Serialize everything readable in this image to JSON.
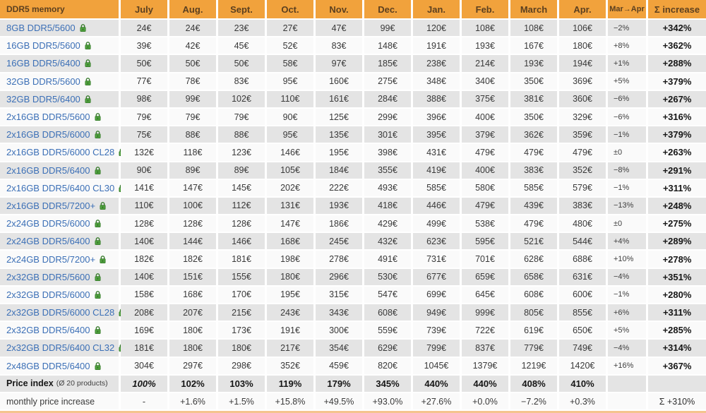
{
  "table": {
    "header": {
      "product_col": "DDR5 memory",
      "months": [
        "July",
        "Aug.",
        "Sept.",
        "Oct.",
        "Nov.",
        "Dec.",
        "Jan.",
        "Feb.",
        "March",
        "Apr."
      ],
      "change_col": "Mar→Apr",
      "total_col": "Σ increase"
    },
    "rows": [
      {
        "product": "8GB DDR5/5600",
        "prices": [
          "24€",
          "24€",
          "23€",
          "27€",
          "47€",
          "99€",
          "120€",
          "108€",
          "108€",
          "106€"
        ],
        "change": "−2%",
        "total": "+342%"
      },
      {
        "product": "16GB DDR5/5600",
        "prices": [
          "39€",
          "42€",
          "45€",
          "52€",
          "83€",
          "148€",
          "191€",
          "193€",
          "167€",
          "180€"
        ],
        "change": "+8%",
        "total": "+362%"
      },
      {
        "product": "16GB DDR5/6400",
        "prices": [
          "50€",
          "50€",
          "50€",
          "58€",
          "97€",
          "185€",
          "238€",
          "214€",
          "193€",
          "194€"
        ],
        "change": "+1%",
        "total": "+288%"
      },
      {
        "product": "32GB DDR5/5600",
        "prices": [
          "77€",
          "78€",
          "83€",
          "95€",
          "160€",
          "275€",
          "348€",
          "340€",
          "350€",
          "369€"
        ],
        "change": "+5%",
        "total": "+379%"
      },
      {
        "product": "32GB DDR5/6400",
        "prices": [
          "98€",
          "99€",
          "102€",
          "110€",
          "161€",
          "284€",
          "388€",
          "375€",
          "381€",
          "360€"
        ],
        "change": "−6%",
        "total": "+267%"
      },
      {
        "product": "2x16GB DDR5/5600",
        "prices": [
          "79€",
          "79€",
          "79€",
          "90€",
          "125€",
          "299€",
          "396€",
          "400€",
          "350€",
          "329€"
        ],
        "change": "−6%",
        "total": "+316%"
      },
      {
        "product": "2x16GB DDR5/6000",
        "prices": [
          "75€",
          "88€",
          "88€",
          "95€",
          "135€",
          "301€",
          "395€",
          "379€",
          "362€",
          "359€"
        ],
        "change": "−1%",
        "total": "+379%"
      },
      {
        "product": "2x16GB DDR5/6000 CL28",
        "prices": [
          "132€",
          "118€",
          "123€",
          "146€",
          "195€",
          "398€",
          "431€",
          "479€",
          "479€",
          "479€"
        ],
        "change": "±0",
        "total": "+263%"
      },
      {
        "product": "2x16GB DDR5/6400",
        "prices": [
          "90€",
          "89€",
          "89€",
          "105€",
          "184€",
          "355€",
          "419€",
          "400€",
          "383€",
          "352€"
        ],
        "change": "−8%",
        "total": "+291%"
      },
      {
        "product": "2x16GB DDR5/6400 CL30",
        "prices": [
          "141€",
          "147€",
          "145€",
          "202€",
          "222€",
          "493€",
          "585€",
          "580€",
          "585€",
          "579€"
        ],
        "change": "−1%",
        "total": "+311%"
      },
      {
        "product": "2x16GB DDR5/7200+",
        "prices": [
          "110€",
          "100€",
          "112€",
          "131€",
          "193€",
          "418€",
          "446€",
          "479€",
          "439€",
          "383€"
        ],
        "change": "−13%",
        "total": "+248%"
      },
      {
        "product": "2x24GB DDR5/6000",
        "prices": [
          "128€",
          "128€",
          "128€",
          "147€",
          "186€",
          "429€",
          "499€",
          "538€",
          "479€",
          "480€"
        ],
        "change": "±0",
        "total": "+275%"
      },
      {
        "product": "2x24GB DDR5/6400",
        "prices": [
          "140€",
          "144€",
          "146€",
          "168€",
          "245€",
          "432€",
          "623€",
          "595€",
          "521€",
          "544€"
        ],
        "change": "+4%",
        "total": "+289%"
      },
      {
        "product": "2x24GB DDR5/7200+",
        "prices": [
          "182€",
          "182€",
          "181€",
          "198€",
          "278€",
          "491€",
          "731€",
          "701€",
          "628€",
          "688€"
        ],
        "change": "+10%",
        "total": "+278%"
      },
      {
        "product": "2x32GB DDR5/5600",
        "prices": [
          "140€",
          "151€",
          "155€",
          "180€",
          "296€",
          "530€",
          "677€",
          "659€",
          "658€",
          "631€"
        ],
        "change": "−4%",
        "total": "+351%"
      },
      {
        "product": "2x32GB DDR5/6000",
        "prices": [
          "158€",
          "168€",
          "170€",
          "195€",
          "315€",
          "547€",
          "699€",
          "645€",
          "608€",
          "600€"
        ],
        "change": "−1%",
        "total": "+280%"
      },
      {
        "product": "2x32GB DDR5/6000 CL28",
        "prices": [
          "208€",
          "207€",
          "215€",
          "243€",
          "343€",
          "608€",
          "949€",
          "999€",
          "805€",
          "855€"
        ],
        "change": "+6%",
        "total": "+311%"
      },
      {
        "product": "2x32GB DDR5/6400",
        "prices": [
          "169€",
          "180€",
          "173€",
          "191€",
          "300€",
          "559€",
          "739€",
          "722€",
          "619€",
          "650€"
        ],
        "change": "+5%",
        "total": "+285%"
      },
      {
        "product": "2x32GB DDR5/6400 CL32",
        "prices": [
          "181€",
          "180€",
          "180€",
          "217€",
          "354€",
          "629€",
          "799€",
          "837€",
          "779€",
          "749€"
        ],
        "change": "−4%",
        "total": "+314%"
      },
      {
        "product": "2x48GB DDR5/6400",
        "prices": [
          "304€",
          "297€",
          "298€",
          "352€",
          "459€",
          "820€",
          "1045€",
          "1379€",
          "1219€",
          "1420€"
        ],
        "change": "+16%",
        "total": "+367%"
      }
    ],
    "price_index": {
      "label": "Price index",
      "label_note": "(Ø 20 products)",
      "values": [
        "100%",
        "102%",
        "103%",
        "119%",
        "179%",
        "345%",
        "440%",
        "440%",
        "408%",
        "410%"
      ],
      "change": "",
      "total": ""
    },
    "monthly_increase": {
      "label": "monthly price increase",
      "values": [
        "-",
        "+1.6%",
        "+1.5%",
        "+15.8%",
        "+49.5%",
        "+93.0%",
        "+27.6%",
        "+0.0%",
        "−7.2%",
        "+0.3%"
      ],
      "change": "",
      "total": "Σ +310%"
    }
  },
  "icons": {
    "lock_icon": "padlock (price-watch lock)"
  },
  "colors": {
    "header_bg": "#f1a23c",
    "header_text": "#5c4020",
    "product_link": "#3b6fb6",
    "lock_green": "#4e9e3d",
    "lock_green_dark": "#377a2b",
    "row_gray": "#e4e4e4",
    "row_light": "#fafafa",
    "bottom_strip": "#f4c48e"
  }
}
